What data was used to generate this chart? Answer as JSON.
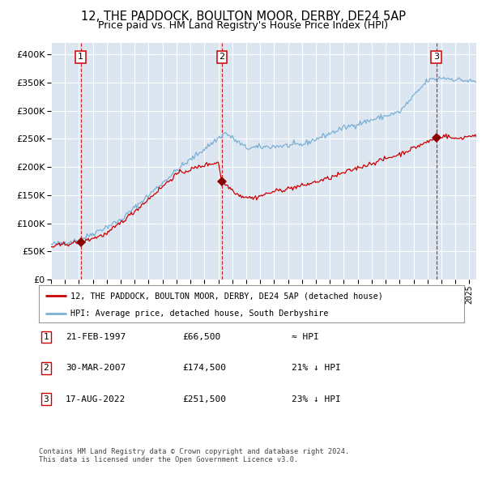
{
  "title": "12, THE PADDOCK, BOULTON MOOR, DERBY, DE24 5AP",
  "subtitle": "Price paid vs. HM Land Registry's House Price Index (HPI)",
  "legend_red": "12, THE PADDOCK, BOULTON MOOR, DERBY, DE24 5AP (detached house)",
  "legend_blue": "HPI: Average price, detached house, South Derbyshire",
  "transactions": [
    {
      "label": "1",
      "date": "21-FEB-1997",
      "price": 66500,
      "hpi_note": "≈ HPI",
      "x_year": 1997.13
    },
    {
      "label": "2",
      "date": "30-MAR-2007",
      "price": 174500,
      "hpi_note": "21% ↓ HPI",
      "x_year": 2007.25
    },
    {
      "label": "3",
      "date": "17-AUG-2022",
      "price": 251500,
      "hpi_note": "23% ↓ HPI",
      "x_year": 2022.63
    }
  ],
  "footnote1": "Contains HM Land Registry data © Crown copyright and database right 2024.",
  "footnote2": "This data is licensed under the Open Government Licence v3.0.",
  "ylim": [
    0,
    420000
  ],
  "xlim_start": 1995.0,
  "xlim_end": 2025.5,
  "plot_bg_color": "#dce6f1",
  "red_line_color": "#cc0000",
  "blue_line_color": "#7bafd4",
  "marker_color": "#8b0000",
  "vline_color": "#cc0000",
  "grid_color": "#ffffff",
  "title_fontsize": 10.5,
  "subtitle_fontsize": 9
}
